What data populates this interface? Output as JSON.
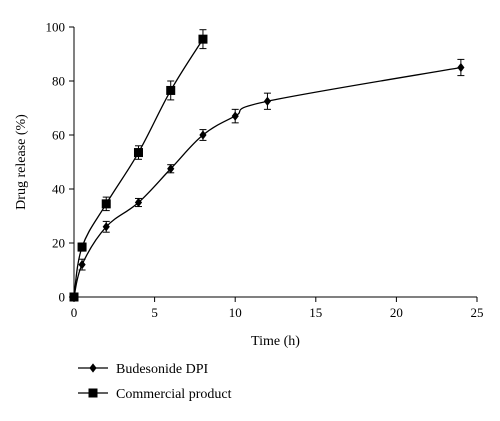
{
  "chart_data": {
    "type": "line",
    "xlabel": "Time (h)",
    "ylabel": "Drug release (%)",
    "xlim": [
      0,
      25
    ],
    "ylim": [
      0,
      100
    ],
    "xticks": [
      0,
      5,
      10,
      15,
      20,
      25
    ],
    "yticks": [
      0,
      20,
      40,
      60,
      80,
      100
    ],
    "grid": false,
    "legend_position": "bottom-left",
    "series": [
      {
        "name": "Budesonide DPI",
        "marker": "diamond",
        "x": [
          0,
          0.5,
          2,
          4,
          6,
          8,
          10,
          12,
          24
        ],
        "y": [
          0,
          12,
          26,
          35,
          47.5,
          60,
          67,
          72.5,
          85
        ],
        "error": [
          1,
          2,
          2,
          1.5,
          1.5,
          2,
          2.5,
          3,
          3
        ]
      },
      {
        "name": "Commercial product",
        "marker": "square",
        "x": [
          0,
          0.5,
          2,
          4,
          6,
          8
        ],
        "y": [
          0,
          18.5,
          34.5,
          53.5,
          76.5,
          95.5
        ],
        "error": [
          1,
          1.5,
          2.5,
          2.5,
          3.5,
          3.5
        ]
      }
    ]
  }
}
